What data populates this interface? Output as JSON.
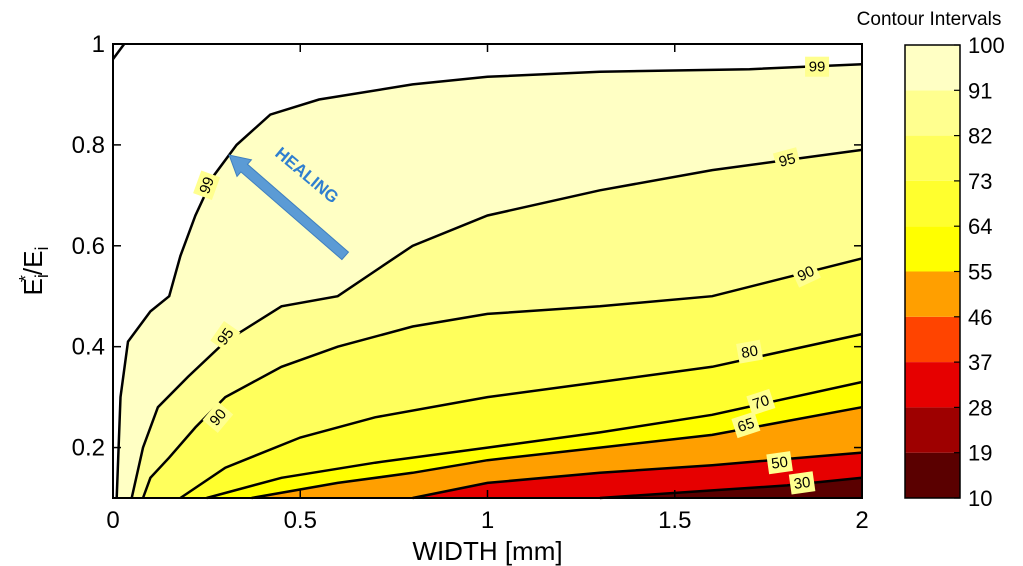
{
  "chart_data": {
    "type": "contour",
    "xlabel": "WIDTH [mm]",
    "ylabel": {
      "base": "E",
      "sup": "*",
      "sub1": "i",
      "slash": "/E",
      "sub2": "i"
    },
    "xlim": [
      0,
      2
    ],
    "ylim": [
      0.1,
      1
    ],
    "x_ticks": [
      0,
      0.5,
      1,
      1.5,
      2
    ],
    "x_tick_labels": [
      "0",
      "0.5",
      "1",
      "1.5",
      "2"
    ],
    "y_ticks": [
      0.2,
      0.4,
      0.6,
      0.8,
      1
    ],
    "y_tick_labels": [
      "0.2",
      "0.4",
      "0.6",
      "0.8",
      "1"
    ],
    "colorbar": {
      "title": "Contour Intervals",
      "levels": [
        10,
        19,
        28,
        37,
        46,
        55,
        64,
        73,
        82,
        91,
        100
      ],
      "labels": [
        "10",
        "19",
        "28",
        "37",
        "46",
        "55",
        "64",
        "73",
        "82",
        "91",
        "100"
      ],
      "colors": [
        "#5a0000",
        "#9e0000",
        "#e60000",
        "#ff4400",
        "#ff9f00",
        "#ffff00",
        "#ffff2e",
        "#ffff5c",
        "#ffff8f",
        "#ffffc4",
        "#ffffff"
      ]
    },
    "contours": [
      {
        "level": 99,
        "label": "99",
        "fill": "#ffffff",
        "points": [
          [
            0,
            0.97
          ],
          [
            0.03,
            1.0
          ]
        ]
      },
      {
        "level": 99,
        "label": "99",
        "fill": "#ffffc4",
        "points": [
          [
            0.01,
            0.1
          ],
          [
            0.02,
            0.3
          ],
          [
            0.04,
            0.41
          ],
          [
            0.1,
            0.47
          ],
          [
            0.15,
            0.5
          ],
          [
            0.18,
            0.58
          ],
          [
            0.22,
            0.66
          ],
          [
            0.27,
            0.74
          ],
          [
            0.33,
            0.8
          ],
          [
            0.42,
            0.86
          ],
          [
            0.55,
            0.89
          ],
          [
            0.8,
            0.92
          ],
          [
            1.0,
            0.935
          ],
          [
            1.3,
            0.945
          ],
          [
            1.7,
            0.95
          ],
          [
            2.0,
            0.96
          ]
        ],
        "labels": [
          {
            "text": "99",
            "x": 0.25,
            "y": 0.72,
            "angle": -70
          },
          {
            "text": "99",
            "x": 1.88,
            "y": 0.955,
            "angle": 0
          }
        ]
      },
      {
        "level": 95,
        "label": "95",
        "fill": "#ffff8f",
        "points": [
          [
            0.05,
            0.1
          ],
          [
            0.08,
            0.2
          ],
          [
            0.12,
            0.28
          ],
          [
            0.2,
            0.34
          ],
          [
            0.3,
            0.41
          ],
          [
            0.45,
            0.48
          ],
          [
            0.6,
            0.5
          ],
          [
            0.7,
            0.55
          ],
          [
            0.8,
            0.6
          ],
          [
            1.0,
            0.66
          ],
          [
            1.3,
            0.71
          ],
          [
            1.6,
            0.75
          ],
          [
            2.0,
            0.79
          ]
        ],
        "labels": [
          {
            "text": "95",
            "x": 0.3,
            "y": 0.42,
            "angle": -55
          },
          {
            "text": "95",
            "x": 1.8,
            "y": 0.77,
            "angle": -15
          }
        ]
      },
      {
        "level": 90,
        "label": "90",
        "fill": "#ffff5c",
        "points": [
          [
            0.08,
            0.1
          ],
          [
            0.1,
            0.14
          ],
          [
            0.15,
            0.18
          ],
          [
            0.22,
            0.24
          ],
          [
            0.3,
            0.3
          ],
          [
            0.45,
            0.36
          ],
          [
            0.6,
            0.4
          ],
          [
            0.8,
            0.44
          ],
          [
            1.0,
            0.465
          ],
          [
            1.3,
            0.48
          ],
          [
            1.6,
            0.5
          ],
          [
            2.0,
            0.575
          ]
        ],
        "labels": [
          {
            "text": "90",
            "x": 0.28,
            "y": 0.26,
            "angle": -50
          },
          {
            "text": "90",
            "x": 1.85,
            "y": 0.545,
            "angle": -25
          }
        ]
      },
      {
        "level": 80,
        "label": "80",
        "fill": "#ffff2e",
        "points": [
          [
            0.18,
            0.1
          ],
          [
            0.3,
            0.16
          ],
          [
            0.5,
            0.22
          ],
          [
            0.7,
            0.26
          ],
          [
            1.0,
            0.3
          ],
          [
            1.3,
            0.33
          ],
          [
            1.6,
            0.36
          ],
          [
            2.0,
            0.425
          ]
        ],
        "labels": [
          {
            "text": "80",
            "x": 1.7,
            "y": 0.39,
            "angle": -10
          }
        ]
      },
      {
        "level": 70,
        "label": "70",
        "fill": "#ffff00",
        "points": [
          [
            0.25,
            0.1
          ],
          [
            0.45,
            0.14
          ],
          [
            0.7,
            0.17
          ],
          [
            1.0,
            0.2
          ],
          [
            1.3,
            0.23
          ],
          [
            1.6,
            0.265
          ],
          [
            2.0,
            0.33
          ]
        ],
        "labels": [
          {
            "text": "70",
            "x": 1.73,
            "y": 0.29,
            "angle": -18
          }
        ]
      },
      {
        "level": 65,
        "label": "65",
        "fill": "#ff9f00",
        "points": [
          [
            0.37,
            0.1
          ],
          [
            0.6,
            0.13
          ],
          [
            0.8,
            0.15
          ],
          [
            1.0,
            0.175
          ],
          [
            1.3,
            0.2
          ],
          [
            1.6,
            0.225
          ],
          [
            2.0,
            0.28
          ]
        ],
        "labels": [
          {
            "text": "65",
            "x": 1.69,
            "y": 0.245,
            "angle": -18
          }
        ]
      },
      {
        "level": 50,
        "label": "50",
        "fill": "#e60000",
        "points": [
          [
            0.8,
            0.1
          ],
          [
            1.0,
            0.13
          ],
          [
            1.3,
            0.15
          ],
          [
            1.6,
            0.165
          ],
          [
            2.0,
            0.19
          ]
        ],
        "labels": [
          {
            "text": "50",
            "x": 1.78,
            "y": 0.17,
            "angle": -8
          }
        ]
      },
      {
        "level": 30,
        "label": "30",
        "fill": "#5a0000",
        "points": [
          [
            1.3,
            0.1
          ],
          [
            1.6,
            0.115
          ],
          [
            1.8,
            0.125
          ],
          [
            2.0,
            0.14
          ]
        ],
        "labels": [
          {
            "text": "30",
            "x": 1.84,
            "y": 0.13,
            "angle": -8
          }
        ]
      }
    ],
    "annotation": {
      "text": "HEALING"
    }
  }
}
